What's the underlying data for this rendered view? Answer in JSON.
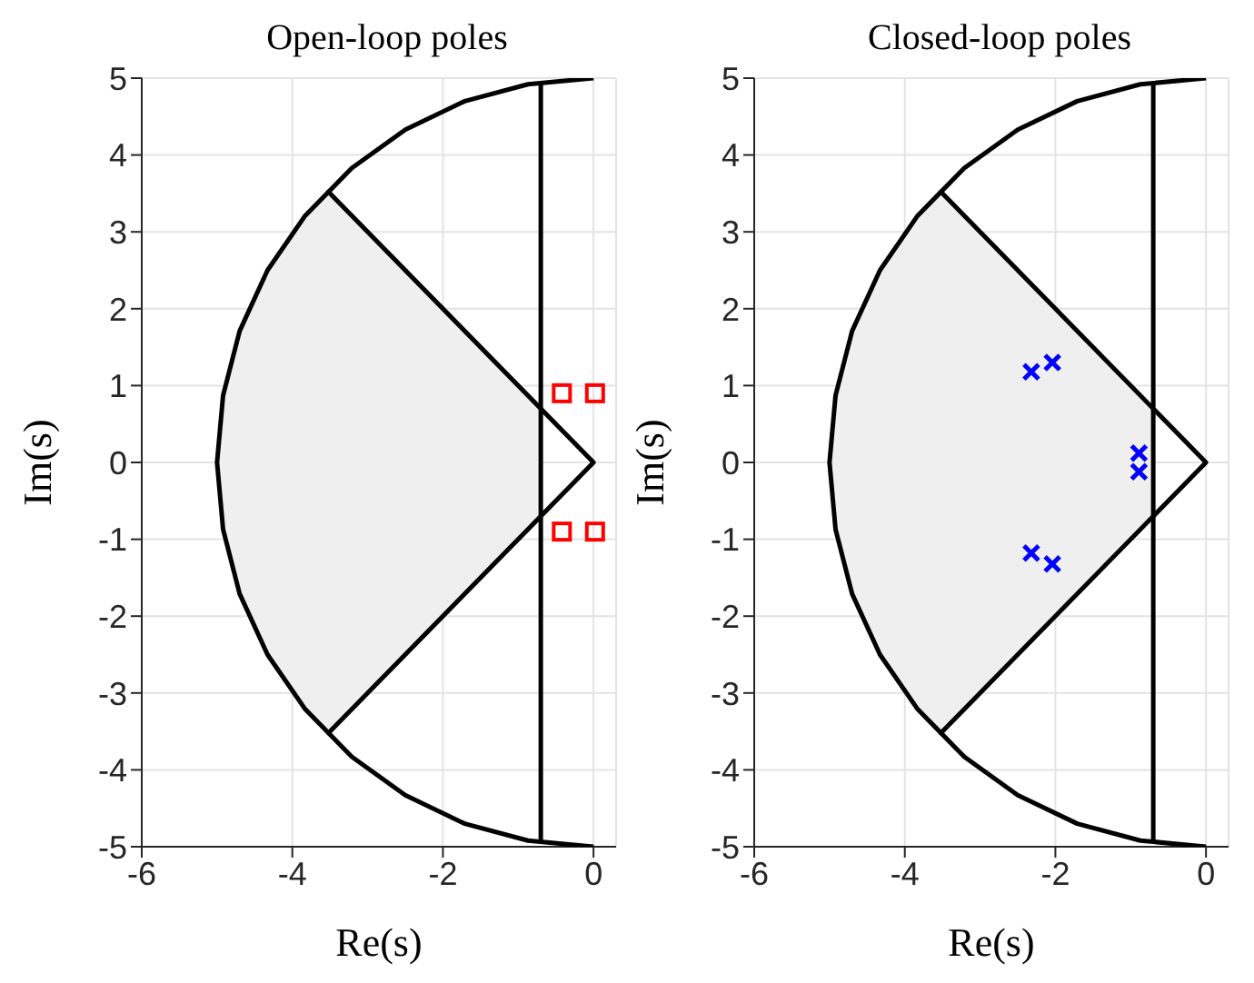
{
  "chart_data": [
    {
      "type": "scatter",
      "title": "Open-loop poles",
      "xlabel": "Re(s)",
      "ylabel": "Im(s)",
      "xlim": [
        -6,
        0.3
      ],
      "ylim": [
        -5,
        5
      ],
      "xticks": [
        -6,
        -4,
        -2,
        0
      ],
      "yticks": [
        -5,
        -4,
        -3,
        -2,
        -1,
        0,
        1,
        2,
        3,
        4,
        5
      ],
      "grid": true,
      "legend": false,
      "series": [
        {
          "type": "area",
          "color": "#efefef",
          "x": [
            -5,
            -4.92,
            -4.7,
            -4.33,
            -3.83,
            -3.54,
            -3,
            -2,
            -1,
            -0.7
          ],
          "values": [
            0,
            0.89,
            1.71,
            2.5,
            3.21,
            3.54,
            3,
            2,
            1,
            0.7
          ]
        },
        {
          "type": "area",
          "color": "#efefef",
          "x": [
            -5,
            -4.92,
            -4.7,
            -4.33,
            -3.83,
            -3.54,
            -3,
            -2,
            -1,
            -0.7
          ],
          "values": [
            0,
            -0.89,
            -1.71,
            -2.5,
            -3.21,
            -3.54,
            -3,
            -2,
            -1,
            -0.7
          ]
        },
        {
          "type": "line",
          "color": "#000000",
          "x": [
            0,
            -0.87,
            -1.71,
            -2.5,
            -3.21,
            -3.83,
            -4.33,
            -4.7,
            -4.92,
            -5,
            -4.92,
            -4.7,
            -4.33,
            -3.83,
            -3.21,
            -2.5,
            -1.71,
            -0.87,
            0
          ],
          "values": [
            5,
            4.92,
            4.7,
            4.33,
            3.83,
            3.21,
            2.5,
            1.71,
            0.87,
            0,
            -0.87,
            -1.71,
            -2.5,
            -3.21,
            -3.83,
            -4.33,
            -4.7,
            -4.92,
            -5
          ]
        },
        {
          "type": "line",
          "color": "#000000",
          "x": [
            -0.7,
            -0.7
          ],
          "values": [
            4.95,
            -4.95
          ]
        },
        {
          "type": "line",
          "color": "#000000",
          "x": [
            -3.54,
            0,
            -3.54
          ],
          "values": [
            3.54,
            0,
            -3.54
          ]
        },
        {
          "color": "#ff0000",
          "marker": "square",
          "x": [
            -0.42,
            0.02,
            -0.42,
            0.02
          ],
          "values": [
            0.9,
            0.9,
            -0.9,
            -0.9
          ]
        }
      ]
    },
    {
      "type": "scatter",
      "title": "Closed-loop poles",
      "xlabel": "Re(s)",
      "ylabel": "Im(s)",
      "xlim": [
        -6,
        0.3
      ],
      "ylim": [
        -5,
        5
      ],
      "xticks": [
        -6,
        -4,
        -2,
        0
      ],
      "yticks": [
        -5,
        -4,
        -3,
        -2,
        -1,
        0,
        1,
        2,
        3,
        4,
        5
      ],
      "grid": true,
      "legend": false,
      "series": [
        {
          "type": "area",
          "color": "#efefef",
          "x": [
            -5,
            -4.92,
            -4.7,
            -4.33,
            -3.83,
            -3.54,
            -3,
            -2,
            -1,
            -0.7
          ],
          "values": [
            0,
            0.89,
            1.71,
            2.5,
            3.21,
            3.54,
            3,
            2,
            1,
            0.7
          ]
        },
        {
          "type": "area",
          "color": "#efefef",
          "x": [
            -5,
            -4.92,
            -4.7,
            -4.33,
            -3.83,
            -3.54,
            -3,
            -2,
            -1,
            -0.7
          ],
          "values": [
            0,
            -0.89,
            -1.71,
            -2.5,
            -3.21,
            -3.54,
            -3,
            -2,
            -1,
            -0.7
          ]
        },
        {
          "type": "line",
          "color": "#000000",
          "x": [
            0,
            -0.87,
            -1.71,
            -2.5,
            -3.21,
            -3.83,
            -4.33,
            -4.7,
            -4.92,
            -5,
            -4.92,
            -4.7,
            -4.33,
            -3.83,
            -3.21,
            -2.5,
            -1.71,
            -0.87,
            0
          ],
          "values": [
            5,
            4.92,
            4.7,
            4.33,
            3.83,
            3.21,
            2.5,
            1.71,
            0.87,
            0,
            -0.87,
            -1.71,
            -2.5,
            -3.21,
            -3.83,
            -4.33,
            -4.7,
            -4.92,
            -5
          ]
        },
        {
          "type": "line",
          "color": "#000000",
          "x": [
            -0.7,
            -0.7
          ],
          "values": [
            4.95,
            -4.95
          ]
        },
        {
          "type": "line",
          "color": "#000000",
          "x": [
            -3.54,
            0,
            -3.54
          ],
          "values": [
            3.54,
            0,
            -3.54
          ]
        },
        {
          "color": "#0000ff",
          "marker": "cross",
          "x": [
            -2.32,
            -2.04,
            -2.32,
            -2.04,
            -0.89,
            -0.89
          ],
          "values": [
            1.18,
            1.3,
            -1.18,
            -1.32,
            0.12,
            -0.12
          ]
        }
      ]
    }
  ]
}
